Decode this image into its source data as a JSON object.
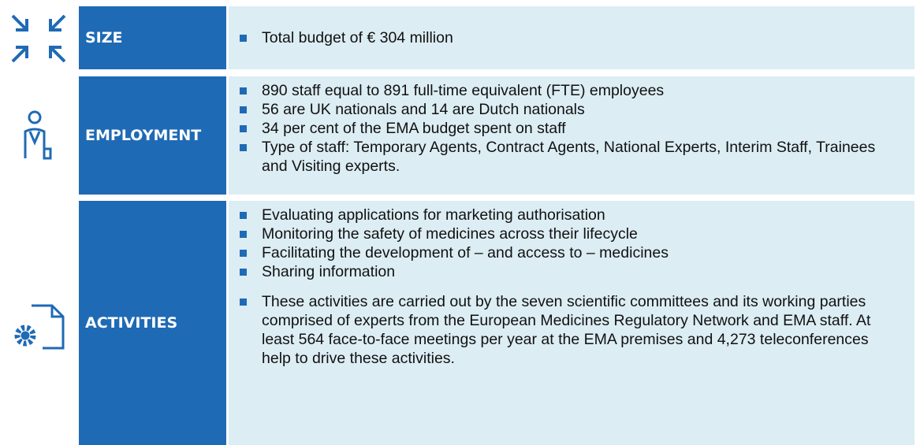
{
  "rows": [
    {
      "label": "SIZE",
      "bullets": [
        "Total budget of € 304 million"
      ]
    },
    {
      "label": "EMPLOYMENT",
      "bullets": [
        "890 staff equal to 891 full-time equivalent (FTE) employees",
        "56 are UK nationals and 14 are Dutch nationals",
        "34 per cent of the EMA budget spent on staff",
        "Type of staff: Temporary Agents, Contract Agents, National Experts, Interim Staff, Trainees and Visiting experts."
      ]
    },
    {
      "label": "ACTIVITIES",
      "bullets": [
        "Evaluating applications for marketing authorisation",
        "Monitoring the safety of medicines across their lifecycle",
        "Facilitating the development of – and access to – medicines",
        "Sharing information",
        "These activities are carried out by the seven scientific committees and its working parties comprised of experts from the European Medicines Regulatory Network and EMA staff. At least 564 face-to-face meetings per year at the EMA premises and 4,273 teleconferences help to drive these activities."
      ]
    }
  ]
}
